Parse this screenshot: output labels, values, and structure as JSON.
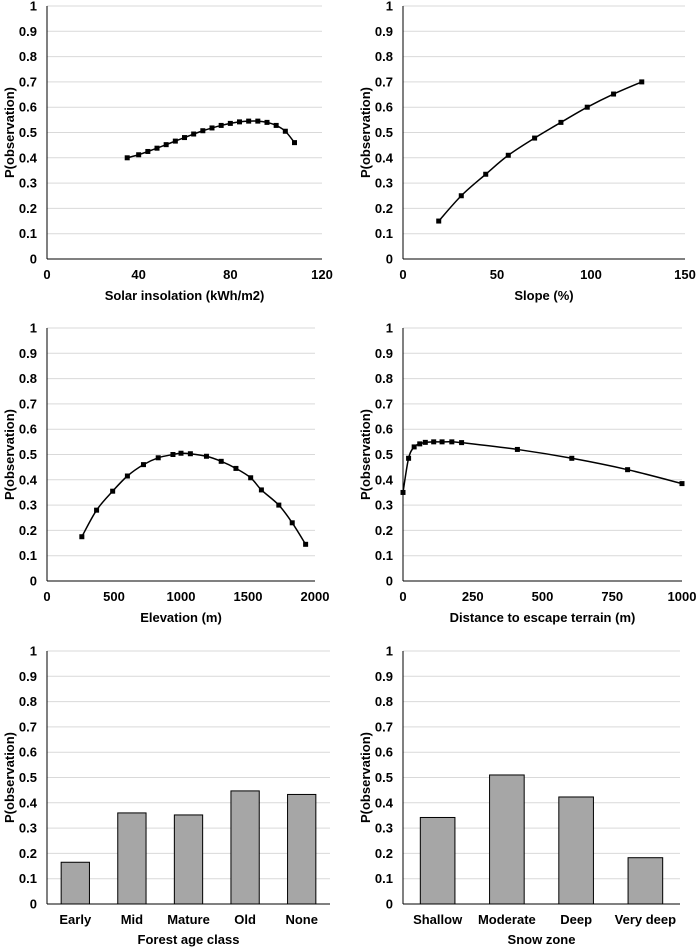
{
  "chart_data": [
    {
      "type": "line",
      "title": "",
      "xlabel": "Solar insolation (kWh/m2)",
      "ylabel": "P(observation)",
      "xlim": [
        0,
        120
      ],
      "xticks": [
        0,
        40,
        80,
        120
      ],
      "ylim": [
        0,
        1
      ],
      "yticks": [
        0,
        0.1,
        0.2,
        0.3,
        0.4,
        0.5,
        0.6,
        0.7,
        0.8,
        0.9,
        1
      ],
      "x": [
        35,
        40,
        44,
        48,
        52,
        56,
        60,
        64,
        68,
        72,
        76,
        80,
        84,
        88,
        92,
        96,
        100,
        104,
        108
      ],
      "y": [
        0.4,
        0.412,
        0.425,
        0.438,
        0.452,
        0.466,
        0.48,
        0.494,
        0.507,
        0.518,
        0.528,
        0.536,
        0.542,
        0.545,
        0.545,
        0.54,
        0.528,
        0.505,
        0.46
      ]
    },
    {
      "type": "line",
      "title": "",
      "xlabel": "Slope (%)",
      "ylabel": "P(observation)",
      "xlim": [
        0,
        150
      ],
      "xticks": [
        0,
        50,
        100,
        150
      ],
      "ylim": [
        0,
        1
      ],
      "yticks": [
        0,
        0.1,
        0.2,
        0.3,
        0.4,
        0.5,
        0.6,
        0.7,
        0.8,
        0.9,
        1
      ],
      "x": [
        19,
        31,
        44,
        56,
        70,
        84,
        98,
        112,
        127
      ],
      "y": [
        0.15,
        0.25,
        0.335,
        0.41,
        0.478,
        0.54,
        0.6,
        0.652,
        0.7
      ]
    },
    {
      "type": "line",
      "title": "",
      "xlabel": "Elevation (m)",
      "ylabel": "P(observation)",
      "xlim": [
        0,
        2000
      ],
      "xticks": [
        0,
        500,
        1000,
        1500,
        2000
      ],
      "ylim": [
        0,
        1
      ],
      "yticks": [
        0,
        0.1,
        0.2,
        0.3,
        0.4,
        0.5,
        0.6,
        0.7,
        0.8,
        0.9,
        1
      ],
      "x": [
        260,
        370,
        490,
        600,
        720,
        830,
        940,
        1000,
        1070,
        1190,
        1300,
        1410,
        1520,
        1600,
        1730,
        1830,
        1930
      ],
      "y": [
        0.175,
        0.28,
        0.355,
        0.415,
        0.46,
        0.487,
        0.5,
        0.505,
        0.503,
        0.493,
        0.473,
        0.445,
        0.408,
        0.36,
        0.3,
        0.23,
        0.145
      ]
    },
    {
      "type": "line",
      "title": "",
      "xlabel": "Distance to escape terrain (m)",
      "ylabel": "P(observation)",
      "xlim": [
        0,
        1000
      ],
      "xticks": [
        0,
        250,
        500,
        750,
        1000
      ],
      "ylim": [
        0,
        1
      ],
      "yticks": [
        0,
        0.1,
        0.2,
        0.3,
        0.4,
        0.5,
        0.6,
        0.7,
        0.8,
        0.9,
        1
      ],
      "x": [
        0,
        20,
        40,
        60,
        80,
        110,
        140,
        175,
        210,
        410,
        605,
        805,
        1000
      ],
      "y": [
        0.35,
        0.485,
        0.53,
        0.542,
        0.548,
        0.55,
        0.55,
        0.55,
        0.547,
        0.52,
        0.485,
        0.44,
        0.385
      ]
    },
    {
      "type": "bar",
      "title": "",
      "xlabel": "Forest age class",
      "ylabel": "P(observation)",
      "categories": [
        "Early",
        "Mid",
        "Mature",
        "Old",
        "None"
      ],
      "values": [
        0.165,
        0.36,
        0.352,
        0.447,
        0.433
      ],
      "ylim": [
        0,
        1
      ],
      "yticks": [
        0,
        0.1,
        0.2,
        0.3,
        0.4,
        0.5,
        0.6,
        0.7,
        0.8,
        0.9,
        1
      ]
    },
    {
      "type": "bar",
      "title": "",
      "xlabel": "Snow zone",
      "ylabel": "P(observation)",
      "categories": [
        "Shallow",
        "Moderate",
        "Deep",
        "Very deep"
      ],
      "values": [
        0.342,
        0.51,
        0.423,
        0.183
      ],
      "ylim": [
        0,
        1
      ],
      "yticks": [
        0,
        0.1,
        0.2,
        0.3,
        0.4,
        0.5,
        0.6,
        0.7,
        0.8,
        0.9,
        1
      ]
    }
  ]
}
